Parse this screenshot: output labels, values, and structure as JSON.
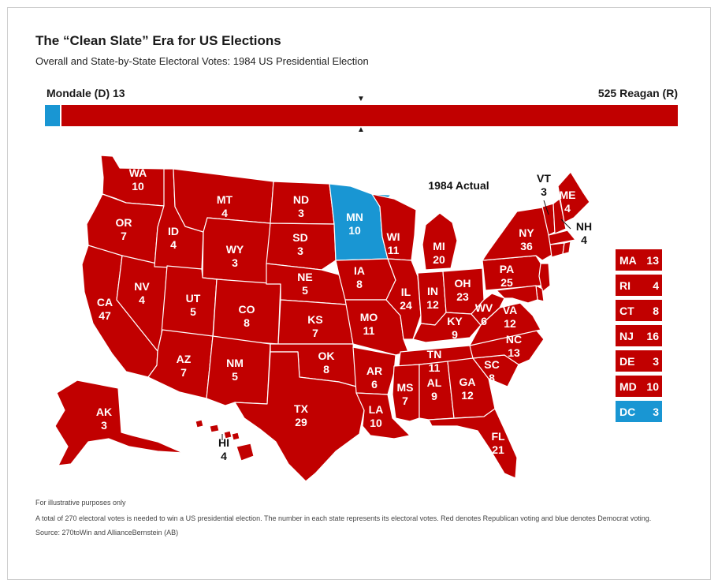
{
  "header": {
    "title": "The “Clean Slate” Era for US Elections",
    "subtitle": "Overall and State-by-State Electoral Votes: 1984 US Presidential Election"
  },
  "totals": {
    "democrat_label": "Mondale (D) 13",
    "republican_label": "525 Reagan (R)",
    "democrat_votes": 13,
    "republican_votes": 525
  },
  "map_title": "1984 Actual",
  "colors": {
    "republican": "#c10000",
    "democrat": "#1996d3"
  },
  "states": [
    {
      "abbr": "WA",
      "votes": "10",
      "party": "R"
    },
    {
      "abbr": "OR",
      "votes": "7",
      "party": "R"
    },
    {
      "abbr": "CA",
      "votes": "47",
      "party": "R"
    },
    {
      "abbr": "NV",
      "votes": "4",
      "party": "R"
    },
    {
      "abbr": "ID",
      "votes": "4",
      "party": "R"
    },
    {
      "abbr": "MT",
      "votes": "4",
      "party": "R"
    },
    {
      "abbr": "WY",
      "votes": "3",
      "party": "R"
    },
    {
      "abbr": "UT",
      "votes": "5",
      "party": "R"
    },
    {
      "abbr": "AZ",
      "votes": "7",
      "party": "R"
    },
    {
      "abbr": "CO",
      "votes": "8",
      "party": "R"
    },
    {
      "abbr": "NM",
      "votes": "5",
      "party": "R"
    },
    {
      "abbr": "ND",
      "votes": "3",
      "party": "R"
    },
    {
      "abbr": "SD",
      "votes": "3",
      "party": "R"
    },
    {
      "abbr": "NE",
      "votes": "5",
      "party": "R"
    },
    {
      "abbr": "KS",
      "votes": "7",
      "party": "R"
    },
    {
      "abbr": "OK",
      "votes": "8",
      "party": "R"
    },
    {
      "abbr": "TX",
      "votes": "29",
      "party": "R"
    },
    {
      "abbr": "MN",
      "votes": "10",
      "party": "D"
    },
    {
      "abbr": "IA",
      "votes": "8",
      "party": "R"
    },
    {
      "abbr": "MO",
      "votes": "11",
      "party": "R"
    },
    {
      "abbr": "AR",
      "votes": "6",
      "party": "R"
    },
    {
      "abbr": "LA",
      "votes": "10",
      "party": "R"
    },
    {
      "abbr": "WI",
      "votes": "11",
      "party": "R"
    },
    {
      "abbr": "IL",
      "votes": "24",
      "party": "R"
    },
    {
      "abbr": "MI",
      "votes": "20",
      "party": "R"
    },
    {
      "abbr": "IN",
      "votes": "12",
      "party": "R"
    },
    {
      "abbr": "OH",
      "votes": "23",
      "party": "R"
    },
    {
      "abbr": "KY",
      "votes": "9",
      "party": "R"
    },
    {
      "abbr": "TN",
      "votes": "11",
      "party": "R"
    },
    {
      "abbr": "MS",
      "votes": "7",
      "party": "R"
    },
    {
      "abbr": "AL",
      "votes": "9",
      "party": "R"
    },
    {
      "abbr": "GA",
      "votes": "12",
      "party": "R"
    },
    {
      "abbr": "FL",
      "votes": "21",
      "party": "R"
    },
    {
      "abbr": "SC",
      "votes": "8",
      "party": "R"
    },
    {
      "abbr": "NC",
      "votes": "13",
      "party": "R"
    },
    {
      "abbr": "VA",
      "votes": "12",
      "party": "R"
    },
    {
      "abbr": "WV",
      "votes": "6",
      "party": "R"
    },
    {
      "abbr": "PA",
      "votes": "25",
      "party": "R"
    },
    {
      "abbr": "NY",
      "votes": "36",
      "party": "R"
    },
    {
      "abbr": "VT",
      "votes": "3",
      "party": "R"
    },
    {
      "abbr": "NH",
      "votes": "4",
      "party": "R"
    },
    {
      "abbr": "ME",
      "votes": "4",
      "party": "R"
    },
    {
      "abbr": "AK",
      "votes": "3",
      "party": "R"
    },
    {
      "abbr": "HI",
      "votes": "4",
      "party": "R"
    }
  ],
  "small_states": [
    {
      "abbr": "MA",
      "votes": "13",
      "party": "R"
    },
    {
      "abbr": "RI",
      "votes": "4",
      "party": "R"
    },
    {
      "abbr": "CT",
      "votes": "8",
      "party": "R"
    },
    {
      "abbr": "NJ",
      "votes": "16",
      "party": "R"
    },
    {
      "abbr": "DE",
      "votes": "3",
      "party": "R"
    },
    {
      "abbr": "MD",
      "votes": "10",
      "party": "R"
    },
    {
      "abbr": "DC",
      "votes": "3",
      "party": "D"
    }
  ],
  "footer": {
    "note": "For illustrative purposes only",
    "description": "A total of 270 electoral votes is needed to win a US presidential election. The number in each state represents its electoral votes. Red denotes Republican voting and blue denotes Democrat voting.",
    "source": "Source: 270toWin and AllianceBernstein (AB)"
  }
}
